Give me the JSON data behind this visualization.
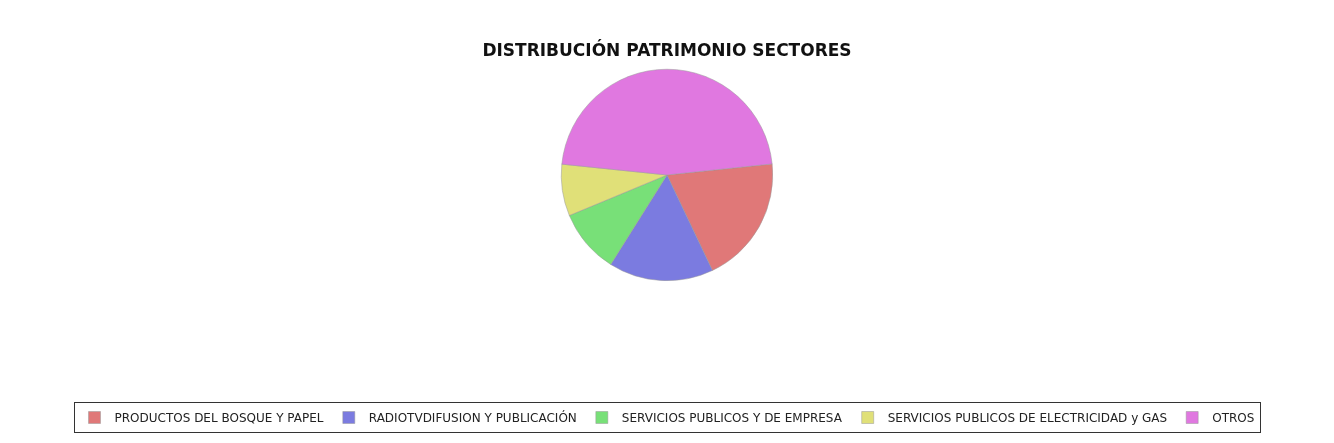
{
  "chart_data": {
    "type": "pie",
    "title": "DISTRIBUCIÓN PATRIMONIO SECTORES",
    "categories": [
      "PRODUCTOS DEL BOSQUE Y PAPEL",
      "RADIOTVDIFUSION Y PUBLICACIÓN",
      "SERVICIOS PUBLICOS Y DE EMPRESA",
      "SERVICIOS PUBLICOS DE ELECTRICIDAD y GAS",
      "OTROS"
    ],
    "values": [
      19.6,
      16,
      9.8,
      7.9,
      46.7
    ],
    "colors": [
      "#e07878",
      "#7b7be0",
      "#78e078",
      "#e0e078",
      "#e078e0"
    ],
    "legend": "bottom"
  }
}
